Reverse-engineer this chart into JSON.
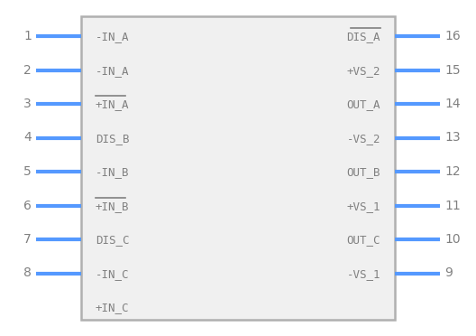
{
  "background_color": "#ffffff",
  "body_edge_color": "#b0b0b0",
  "body_fill": "#f0f0f0",
  "pin_color": "#5599ff",
  "text_color": "#808080",
  "number_color": "#808080",
  "left_pins": [
    {
      "num": "1",
      "label": "-IN",
      "sub": "A",
      "overline": false
    },
    {
      "num": "2",
      "label": "-IN",
      "sub": "A",
      "overline": false
    },
    {
      "num": "3",
      "label": "+IN",
      "sub": "A",
      "overline": true
    },
    {
      "num": "4",
      "label": "DIS",
      "sub": "B",
      "overline": false
    },
    {
      "num": "5",
      "label": "-IN",
      "sub": "B",
      "overline": false
    },
    {
      "num": "6",
      "label": "+IN",
      "sub": "B",
      "overline": true
    },
    {
      "num": "7",
      "label": "DIS",
      "sub": "C",
      "overline": false
    },
    {
      "num": "8",
      "label": "-IN",
      "sub": "C",
      "overline": false
    },
    {
      "num": "",
      "label": "+IN",
      "sub": "C",
      "overline": false
    }
  ],
  "right_pins": [
    {
      "num": "16",
      "label": "DIS",
      "sub": "A",
      "overline": true
    },
    {
      "num": "15",
      "label": "+VS",
      "sub": "2",
      "overline": false
    },
    {
      "num": "14",
      "label": "OUT",
      "sub": "A",
      "overline": false
    },
    {
      "num": "13",
      "label": "-VS",
      "sub": "2",
      "overline": false
    },
    {
      "num": "12",
      "label": "OUT",
      "sub": "B",
      "overline": false
    },
    {
      "num": "11",
      "label": "+VS",
      "sub": "1",
      "overline": false
    },
    {
      "num": "10",
      "label": "OUT",
      "sub": "C",
      "overline": false
    },
    {
      "num": "9",
      "label": "-VS",
      "sub": "1",
      "overline": false
    },
    {
      "num": "",
      "label": "",
      "sub": "",
      "overline": false
    }
  ],
  "fig_w": 5.28,
  "fig_h": 3.72,
  "dpi": 100
}
